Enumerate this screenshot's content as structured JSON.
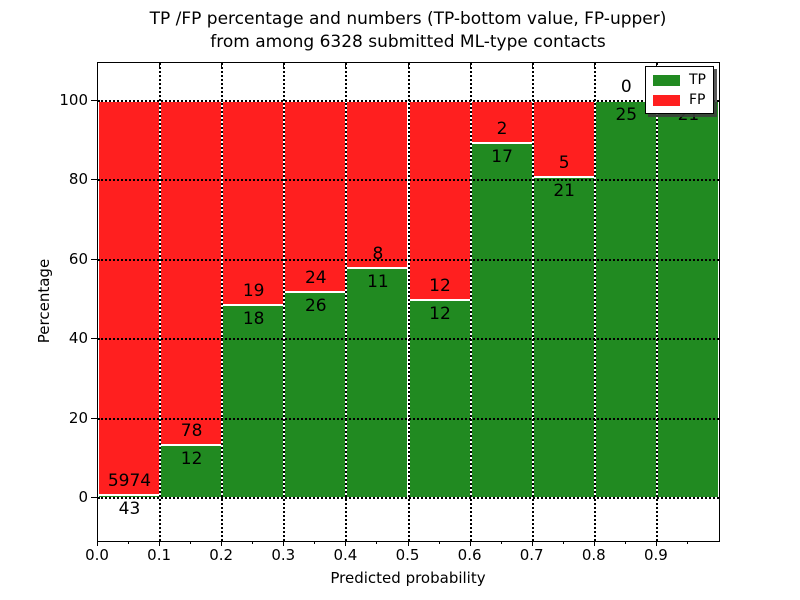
{
  "figure": {
    "title_line1": "TP /FP percentage and numbers (TP-bottom value, FP-upper)",
    "title_line2": "from among 6328 submitted ML-type contacts"
  },
  "colors": {
    "tp_green": "#218a21",
    "fp_red": "#ff1f1f",
    "grid": "#000000",
    "bar_edge": "#ffffff",
    "background": "#ffffff"
  },
  "chart_data": {
    "type": "bar",
    "stacked": true,
    "title": "TP /FP percentage and numbers (TP-bottom value, FP-upper) from among 6328 submitted ML-type contacts",
    "xlabel": "Predicted probability",
    "ylabel": "Percentage",
    "total_contacts": 6328,
    "x_tick_labels": [
      "0.0",
      "0.1",
      "0.2",
      "0.3",
      "0.4",
      "0.5",
      "0.6",
      "0.7",
      "0.8",
      "0.9"
    ],
    "x_minor_tick_step": 0.05,
    "y_ticks": [
      0,
      20,
      40,
      60,
      80,
      100
    ],
    "xlim": [
      0.0,
      1.0
    ],
    "ylim": [
      -10.8,
      109.6
    ],
    "grid": "dotted",
    "legend": {
      "position": "upper right",
      "shadow": true,
      "entries": [
        {
          "label": "TP",
          "color": "#218a21"
        },
        {
          "label": "FP",
          "color": "#ff1f1f"
        }
      ]
    },
    "categories": [
      "0.0-0.1",
      "0.1-0.2",
      "0.2-0.3",
      "0.3-0.4",
      "0.4-0.5",
      "0.5-0.6",
      "0.6-0.7",
      "0.7-0.8",
      "0.8-0.9",
      "0.9-1.0"
    ],
    "series": [
      {
        "name": "TP",
        "values_pct": [
          0.71,
          13.33,
          48.65,
          52.0,
          57.89,
          50.0,
          89.47,
          80.77,
          100.0,
          100.0
        ]
      },
      {
        "name": "FP",
        "values_pct": [
          99.29,
          86.67,
          51.35,
          48.0,
          42.11,
          50.0,
          10.53,
          19.23,
          0.0,
          0.0
        ]
      }
    ],
    "bins": [
      {
        "range": "0.0-0.1",
        "tp": 43,
        "fp": 5974,
        "tp_pct": 0.71,
        "fp_label_visible": true
      },
      {
        "range": "0.1-0.2",
        "tp": 12,
        "fp": 78,
        "tp_pct": 13.33,
        "fp_label_visible": true
      },
      {
        "range": "0.2-0.3",
        "tp": 18,
        "fp": 19,
        "tp_pct": 48.65,
        "fp_label_visible": true
      },
      {
        "range": "0.3-0.4",
        "tp": 26,
        "fp": 24,
        "tp_pct": 52.0,
        "fp_label_visible": true
      },
      {
        "range": "0.4-0.5",
        "tp": 11,
        "fp": 8,
        "tp_pct": 57.89,
        "fp_label_visible": true
      },
      {
        "range": "0.5-0.6",
        "tp": 12,
        "fp": 12,
        "tp_pct": 50.0,
        "fp_label_visible": true
      },
      {
        "range": "0.6-0.7",
        "tp": 17,
        "fp": 2,
        "tp_pct": 89.47,
        "fp_label_visible": true
      },
      {
        "range": "0.7-0.8",
        "tp": 21,
        "fp": 5,
        "tp_pct": 80.77,
        "fp_label_visible": true
      },
      {
        "range": "0.8-0.9",
        "tp": 25,
        "fp": 0,
        "tp_pct": 100.0,
        "fp_label_visible": true
      },
      {
        "range": "0.9-1.0",
        "tp": 21,
        "fp": 0,
        "tp_pct": 100.0,
        "fp_label_visible": false
      }
    ]
  }
}
